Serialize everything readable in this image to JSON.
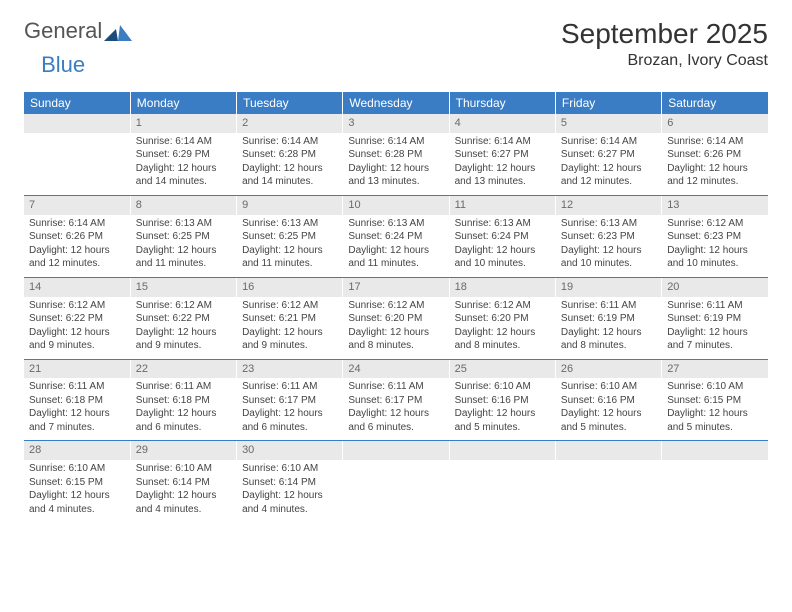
{
  "logo": {
    "text1": "General",
    "text2": "Blue"
  },
  "header": {
    "month": "September 2025",
    "location": "Brozan, Ivory Coast"
  },
  "daynames": [
    "Sunday",
    "Monday",
    "Tuesday",
    "Wednesday",
    "Thursday",
    "Friday",
    "Saturday"
  ],
  "colors": {
    "header_bg": "#3b7dc4",
    "header_fg": "#ffffff",
    "daynum_bg": "#e9e9e9",
    "daynum_fg": "#6a6a6a",
    "rule": "#3b7dc4",
    "text": "#444444",
    "page_bg": "#ffffff"
  },
  "fonts": {
    "month_title_size": 28,
    "location_size": 16,
    "dayname_size": 12,
    "body_size": 10
  },
  "weeks": [
    [
      {
        "num": "",
        "sunrise": "",
        "sunset": "",
        "daylight1": "",
        "daylight2": ""
      },
      {
        "num": "1",
        "sunrise": "Sunrise: 6:14 AM",
        "sunset": "Sunset: 6:29 PM",
        "daylight1": "Daylight: 12 hours",
        "daylight2": "and 14 minutes."
      },
      {
        "num": "2",
        "sunrise": "Sunrise: 6:14 AM",
        "sunset": "Sunset: 6:28 PM",
        "daylight1": "Daylight: 12 hours",
        "daylight2": "and 14 minutes."
      },
      {
        "num": "3",
        "sunrise": "Sunrise: 6:14 AM",
        "sunset": "Sunset: 6:28 PM",
        "daylight1": "Daylight: 12 hours",
        "daylight2": "and 13 minutes."
      },
      {
        "num": "4",
        "sunrise": "Sunrise: 6:14 AM",
        "sunset": "Sunset: 6:27 PM",
        "daylight1": "Daylight: 12 hours",
        "daylight2": "and 13 minutes."
      },
      {
        "num": "5",
        "sunrise": "Sunrise: 6:14 AM",
        "sunset": "Sunset: 6:27 PM",
        "daylight1": "Daylight: 12 hours",
        "daylight2": "and 12 minutes."
      },
      {
        "num": "6",
        "sunrise": "Sunrise: 6:14 AM",
        "sunset": "Sunset: 6:26 PM",
        "daylight1": "Daylight: 12 hours",
        "daylight2": "and 12 minutes."
      }
    ],
    [
      {
        "num": "7",
        "sunrise": "Sunrise: 6:14 AM",
        "sunset": "Sunset: 6:26 PM",
        "daylight1": "Daylight: 12 hours",
        "daylight2": "and 12 minutes."
      },
      {
        "num": "8",
        "sunrise": "Sunrise: 6:13 AM",
        "sunset": "Sunset: 6:25 PM",
        "daylight1": "Daylight: 12 hours",
        "daylight2": "and 11 minutes."
      },
      {
        "num": "9",
        "sunrise": "Sunrise: 6:13 AM",
        "sunset": "Sunset: 6:25 PM",
        "daylight1": "Daylight: 12 hours",
        "daylight2": "and 11 minutes."
      },
      {
        "num": "10",
        "sunrise": "Sunrise: 6:13 AM",
        "sunset": "Sunset: 6:24 PM",
        "daylight1": "Daylight: 12 hours",
        "daylight2": "and 11 minutes."
      },
      {
        "num": "11",
        "sunrise": "Sunrise: 6:13 AM",
        "sunset": "Sunset: 6:24 PM",
        "daylight1": "Daylight: 12 hours",
        "daylight2": "and 10 minutes."
      },
      {
        "num": "12",
        "sunrise": "Sunrise: 6:13 AM",
        "sunset": "Sunset: 6:23 PM",
        "daylight1": "Daylight: 12 hours",
        "daylight2": "and 10 minutes."
      },
      {
        "num": "13",
        "sunrise": "Sunrise: 6:12 AM",
        "sunset": "Sunset: 6:23 PM",
        "daylight1": "Daylight: 12 hours",
        "daylight2": "and 10 minutes."
      }
    ],
    [
      {
        "num": "14",
        "sunrise": "Sunrise: 6:12 AM",
        "sunset": "Sunset: 6:22 PM",
        "daylight1": "Daylight: 12 hours",
        "daylight2": "and 9 minutes."
      },
      {
        "num": "15",
        "sunrise": "Sunrise: 6:12 AM",
        "sunset": "Sunset: 6:22 PM",
        "daylight1": "Daylight: 12 hours",
        "daylight2": "and 9 minutes."
      },
      {
        "num": "16",
        "sunrise": "Sunrise: 6:12 AM",
        "sunset": "Sunset: 6:21 PM",
        "daylight1": "Daylight: 12 hours",
        "daylight2": "and 9 minutes."
      },
      {
        "num": "17",
        "sunrise": "Sunrise: 6:12 AM",
        "sunset": "Sunset: 6:20 PM",
        "daylight1": "Daylight: 12 hours",
        "daylight2": "and 8 minutes."
      },
      {
        "num": "18",
        "sunrise": "Sunrise: 6:12 AM",
        "sunset": "Sunset: 6:20 PM",
        "daylight1": "Daylight: 12 hours",
        "daylight2": "and 8 minutes."
      },
      {
        "num": "19",
        "sunrise": "Sunrise: 6:11 AM",
        "sunset": "Sunset: 6:19 PM",
        "daylight1": "Daylight: 12 hours",
        "daylight2": "and 8 minutes."
      },
      {
        "num": "20",
        "sunrise": "Sunrise: 6:11 AM",
        "sunset": "Sunset: 6:19 PM",
        "daylight1": "Daylight: 12 hours",
        "daylight2": "and 7 minutes."
      }
    ],
    [
      {
        "num": "21",
        "sunrise": "Sunrise: 6:11 AM",
        "sunset": "Sunset: 6:18 PM",
        "daylight1": "Daylight: 12 hours",
        "daylight2": "and 7 minutes."
      },
      {
        "num": "22",
        "sunrise": "Sunrise: 6:11 AM",
        "sunset": "Sunset: 6:18 PM",
        "daylight1": "Daylight: 12 hours",
        "daylight2": "and 6 minutes."
      },
      {
        "num": "23",
        "sunrise": "Sunrise: 6:11 AM",
        "sunset": "Sunset: 6:17 PM",
        "daylight1": "Daylight: 12 hours",
        "daylight2": "and 6 minutes."
      },
      {
        "num": "24",
        "sunrise": "Sunrise: 6:11 AM",
        "sunset": "Sunset: 6:17 PM",
        "daylight1": "Daylight: 12 hours",
        "daylight2": "and 6 minutes."
      },
      {
        "num": "25",
        "sunrise": "Sunrise: 6:10 AM",
        "sunset": "Sunset: 6:16 PM",
        "daylight1": "Daylight: 12 hours",
        "daylight2": "and 5 minutes."
      },
      {
        "num": "26",
        "sunrise": "Sunrise: 6:10 AM",
        "sunset": "Sunset: 6:16 PM",
        "daylight1": "Daylight: 12 hours",
        "daylight2": "and 5 minutes."
      },
      {
        "num": "27",
        "sunrise": "Sunrise: 6:10 AM",
        "sunset": "Sunset: 6:15 PM",
        "daylight1": "Daylight: 12 hours",
        "daylight2": "and 5 minutes."
      }
    ],
    [
      {
        "num": "28",
        "sunrise": "Sunrise: 6:10 AM",
        "sunset": "Sunset: 6:15 PM",
        "daylight1": "Daylight: 12 hours",
        "daylight2": "and 4 minutes."
      },
      {
        "num": "29",
        "sunrise": "Sunrise: 6:10 AM",
        "sunset": "Sunset: 6:14 PM",
        "daylight1": "Daylight: 12 hours",
        "daylight2": "and 4 minutes."
      },
      {
        "num": "30",
        "sunrise": "Sunrise: 6:10 AM",
        "sunset": "Sunset: 6:14 PM",
        "daylight1": "Daylight: 12 hours",
        "daylight2": "and 4 minutes."
      },
      {
        "num": "",
        "sunrise": "",
        "sunset": "",
        "daylight1": "",
        "daylight2": ""
      },
      {
        "num": "",
        "sunrise": "",
        "sunset": "",
        "daylight1": "",
        "daylight2": ""
      },
      {
        "num": "",
        "sunrise": "",
        "sunset": "",
        "daylight1": "",
        "daylight2": ""
      },
      {
        "num": "",
        "sunrise": "",
        "sunset": "",
        "daylight1": "",
        "daylight2": ""
      }
    ]
  ]
}
